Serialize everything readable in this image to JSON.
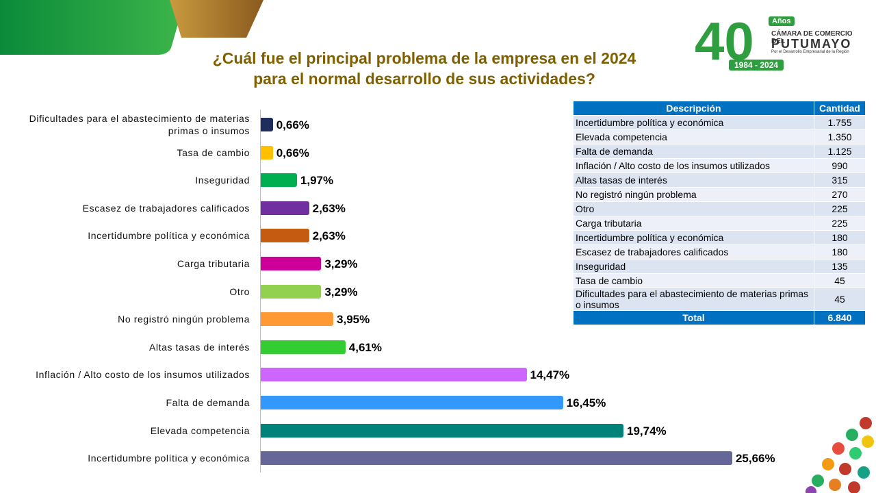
{
  "title_lines": [
    "¿Cuál fue el principal problema  de la empresa en el 2024",
    "para el normal desarrollo de sus actividades?"
  ],
  "logo": {
    "number": "40",
    "anos": "Años",
    "line1": "CÁMARA DE COMERCIO DEL",
    "line2": "PUTUMAYO",
    "line3": "Por el Desarrollo Empresarial de la Región",
    "years": "1984 - 2024"
  },
  "chart_data": {
    "type": "bar",
    "orientation": "horizontal",
    "categories": [
      "Dificultades para el abastecimiento de materias primas o insumos",
      "Tasa de cambio",
      "Inseguridad",
      "Escasez de trabajadores calificados",
      "Incertidumbre política y económica",
      "Carga tributaria",
      "Otro",
      "No registró ningún problema",
      "Altas tasas de interés",
      "Inflación / Alto costo de los insumos utilizados",
      "Falta de demanda",
      "Elevada competencia",
      "Incertidumbre política y económica"
    ],
    "values": [
      0.66,
      0.66,
      1.97,
      2.63,
      2.63,
      3.29,
      3.29,
      3.95,
      4.61,
      14.47,
      16.45,
      19.74,
      25.66
    ],
    "value_labels": [
      "0,66%",
      "0,66%",
      "1,97%",
      "2,63%",
      "2,63%",
      "3,29%",
      "3,29%",
      "3,95%",
      "4,61%",
      "14,47%",
      "16,45%",
      "19,74%",
      "25,66%"
    ],
    "colors": [
      "#1f2d5c",
      "#ffc000",
      "#00b050",
      "#7030a0",
      "#c55a11",
      "#cc0099",
      "#92d050",
      "#ff9933",
      "#33cc33",
      "#cc66ff",
      "#3399ff",
      "#00817a",
      "#666699"
    ]
  },
  "table": {
    "header": [
      "Descripción",
      "Cantidad"
    ],
    "rows": [
      [
        "Incertidumbre política y económica",
        "1.755"
      ],
      [
        "Elevada competencia",
        "1.350"
      ],
      [
        "Falta de demanda",
        "1.125"
      ],
      [
        "Inflación / Alto costo de los insumos utilizados",
        "990"
      ],
      [
        "Altas tasas de interés",
        "315"
      ],
      [
        "No registró ningún problema",
        "270"
      ],
      [
        "Otro",
        "225"
      ],
      [
        "Carga tributaria",
        "225"
      ],
      [
        "Incertidumbre política y económica",
        "180"
      ],
      [
        "Escasez de trabajadores calificados",
        "180"
      ],
      [
        "Inseguridad",
        "135"
      ],
      [
        "Tasa de cambio",
        "45"
      ],
      [
        "Dificultades para el abastecimiento de materias primas o insumos",
        "45"
      ]
    ],
    "total": [
      "Total",
      "6.840"
    ]
  }
}
